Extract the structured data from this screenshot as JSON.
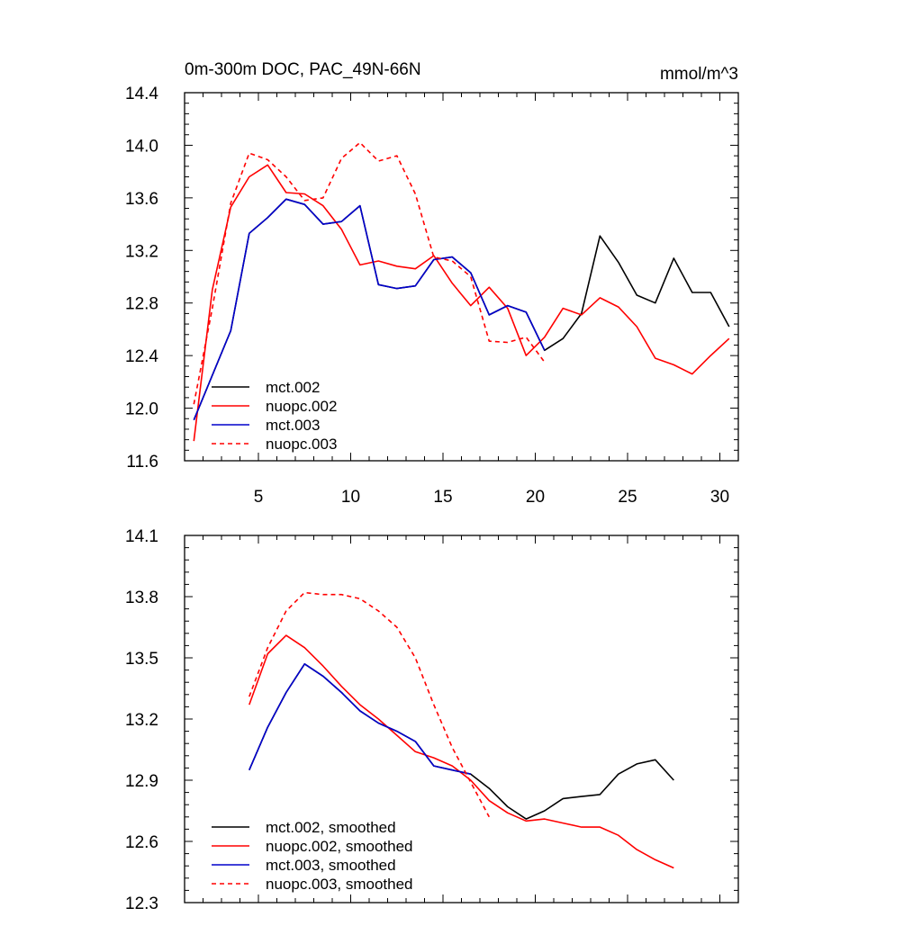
{
  "colors": {
    "mct002": "#000000",
    "nuopc002": "#ff0000",
    "mct003": "#0000cc",
    "nuopc003": "#ff0000",
    "axis": "#000000",
    "background": "#ffffff"
  },
  "chart_data": [
    {
      "type": "line",
      "title": "0m-300m DOC, PAC_49N-66N",
      "units": "mmol/m^3",
      "xlabel": "",
      "ylabel": "",
      "xlim": [
        1,
        31
      ],
      "ylim": [
        11.6,
        14.4
      ],
      "xticks": [
        5,
        10,
        15,
        20,
        25,
        30
      ],
      "xtick_labels": [
        "5",
        "10",
        "15",
        "20",
        "25",
        "30"
      ],
      "yticks": [
        11.6,
        12.0,
        12.4,
        12.8,
        13.2,
        13.6,
        14.0,
        14.4
      ],
      "ytick_labels": [
        "11.6",
        "12.0",
        "12.4",
        "12.8",
        "13.2",
        "13.6",
        "14.0",
        "14.4"
      ],
      "legend_position": "bottom-left",
      "series": [
        {
          "name": "mct.002",
          "key": "mct002",
          "dash": "solid",
          "x": [
            1.5,
            3.5,
            4.5,
            5.5,
            6.5,
            7.5,
            8.5,
            9.5,
            10.5,
            11.5,
            12.5,
            13.5,
            14.5,
            15.5,
            16.5,
            17.5,
            18.5,
            19.5,
            20.5,
            21.5,
            22.5,
            23.5,
            24.5,
            25.5,
            26.5,
            27.5,
            28.5,
            29.5,
            30.5
          ],
          "values": [
            11.91,
            12.59,
            13.33,
            13.45,
            13.59,
            13.55,
            13.4,
            13.42,
            13.54,
            12.94,
            12.91,
            12.93,
            13.13,
            13.15,
            13.03,
            12.71,
            12.78,
            12.73,
            12.44,
            12.53,
            12.72,
            13.31,
            13.11,
            12.86,
            12.8,
            13.14,
            12.88,
            12.88,
            12.62
          ]
        },
        {
          "name": "nuopc.002",
          "key": "nuopc002",
          "dash": "solid",
          "x": [
            1.5,
            2.5,
            3.5,
            4.5,
            5.5,
            6.5,
            7.5,
            8.5,
            9.5,
            10.5,
            11.5,
            12.5,
            13.5,
            14.5,
            15.5,
            16.5,
            17.5,
            18.5,
            19.5,
            20.5,
            21.5,
            22.5,
            23.5,
            24.5,
            25.5,
            26.5,
            27.5,
            28.5,
            29.5,
            30.5
          ],
          "values": [
            11.75,
            12.9,
            13.53,
            13.76,
            13.85,
            13.64,
            13.63,
            13.54,
            13.36,
            13.09,
            13.12,
            13.08,
            13.06,
            13.16,
            12.95,
            12.78,
            12.92,
            12.76,
            12.4,
            12.54,
            12.76,
            12.71,
            12.84,
            12.77,
            12.62,
            12.38,
            12.33,
            12.26,
            12.4,
            12.53
          ]
        },
        {
          "name": "mct.003",
          "key": "mct003",
          "dash": "solid",
          "x": [
            1.5,
            3.5,
            4.5,
            5.5,
            6.5,
            7.5,
            8.5,
            9.5,
            10.5,
            11.5,
            12.5,
            13.5,
            14.5,
            15.5,
            16.5,
            17.5,
            18.5,
            19.5,
            20.5
          ],
          "values": [
            11.91,
            12.59,
            13.33,
            13.45,
            13.59,
            13.55,
            13.4,
            13.42,
            13.54,
            12.94,
            12.91,
            12.93,
            13.13,
            13.15,
            13.03,
            12.71,
            12.78,
            12.73,
            12.44
          ]
        },
        {
          "name": "nuopc.003",
          "key": "nuopc003",
          "dash": "dashed",
          "x": [
            1.5,
            2.5,
            3.5,
            4.5,
            5.5,
            6.5,
            7.5,
            8.5,
            9.5,
            10.5,
            11.5,
            12.5,
            13.5,
            14.5,
            15.5,
            16.5,
            17.5,
            18.5,
            19.5,
            20.5
          ],
          "values": [
            12.03,
            12.76,
            13.56,
            13.94,
            13.89,
            13.76,
            13.58,
            13.6,
            13.9,
            14.02,
            13.88,
            13.92,
            13.63,
            13.15,
            13.12,
            13.0,
            12.51,
            12.5,
            12.54,
            12.35
          ]
        }
      ]
    },
    {
      "type": "line",
      "title": "",
      "units": "",
      "xlabel": "",
      "ylabel": "",
      "xlim": [
        1,
        31
      ],
      "ylim": [
        12.3,
        14.1
      ],
      "xticks": [
        5,
        10,
        15,
        20,
        25,
        30
      ],
      "xtick_labels": [],
      "yticks": [
        12.3,
        12.6,
        12.9,
        13.2,
        13.5,
        13.8,
        14.1
      ],
      "ytick_labels": [
        "12.3",
        "12.6",
        "12.9",
        "13.2",
        "13.5",
        "13.8",
        "14.1"
      ],
      "legend_position": "bottom-left",
      "series": [
        {
          "name": "mct.002, smoothed",
          "key": "mct002",
          "dash": "solid",
          "x": [
            4.5,
            5.5,
            6.5,
            7.5,
            8.5,
            9.5,
            10.5,
            11.5,
            12.5,
            13.5,
            14.5,
            15.5,
            16.5,
            17.5,
            18.5,
            19.5,
            20.5,
            21.5,
            22.5,
            23.5,
            24.5,
            25.5,
            26.5,
            27.5
          ],
          "values": [
            12.95,
            13.16,
            13.33,
            13.47,
            13.41,
            13.33,
            13.24,
            13.18,
            13.14,
            13.09,
            12.97,
            12.95,
            12.93,
            12.86,
            12.77,
            12.71,
            12.75,
            12.81,
            12.82,
            12.83,
            12.93,
            12.98,
            13.0,
            12.9
          ]
        },
        {
          "name": "nuopc.002, smoothed",
          "key": "nuopc002",
          "dash": "solid",
          "x": [
            4.5,
            5.5,
            6.5,
            7.5,
            8.5,
            9.5,
            10.5,
            11.5,
            12.5,
            13.5,
            14.5,
            15.5,
            16.5,
            17.5,
            18.5,
            19.5,
            20.5,
            21.5,
            22.5,
            23.5,
            24.5,
            25.5,
            26.5,
            27.5
          ],
          "values": [
            13.27,
            13.52,
            13.61,
            13.55,
            13.46,
            13.36,
            13.27,
            13.2,
            13.12,
            13.04,
            13.01,
            12.97,
            12.9,
            12.8,
            12.74,
            12.7,
            12.71,
            12.69,
            12.67,
            12.67,
            12.63,
            12.56,
            12.51,
            12.47
          ]
        },
        {
          "name": "mct.003, smoothed",
          "key": "mct003",
          "dash": "solid",
          "x": [
            4.5,
            5.5,
            6.5,
            7.5,
            8.5,
            9.5,
            10.5,
            11.5,
            12.5,
            13.5,
            14.5,
            15.5,
            16.5
          ],
          "values": [
            12.95,
            13.16,
            13.33,
            13.47,
            13.41,
            13.33,
            13.24,
            13.18,
            13.14,
            13.09,
            12.97,
            12.95,
            12.93
          ]
        },
        {
          "name": "nuopc.003, smoothed",
          "key": "nuopc003",
          "dash": "dashed",
          "x": [
            4.5,
            5.5,
            6.5,
            7.5,
            8.5,
            9.5,
            10.5,
            11.5,
            12.5,
            13.5,
            14.5,
            15.5,
            16.5,
            17.5
          ],
          "values": [
            13.31,
            13.55,
            13.73,
            13.82,
            13.81,
            13.81,
            13.79,
            13.73,
            13.65,
            13.5,
            13.27,
            13.06,
            12.89,
            12.72
          ]
        }
      ]
    }
  ]
}
